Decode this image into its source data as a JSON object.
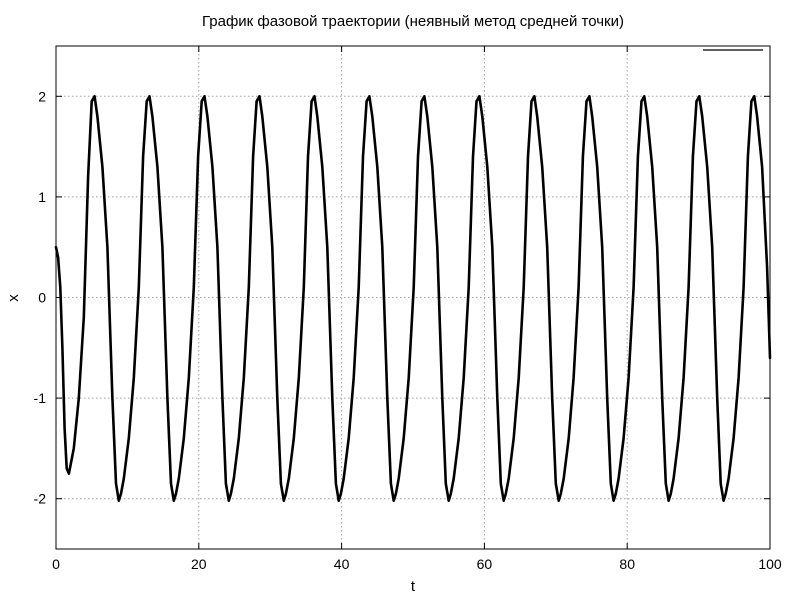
{
  "chart_data": {
    "type": "line",
    "title": "График фазовой траектории (неявный метод средней точки)",
    "xlabel": "t",
    "ylabel": "x",
    "xlim": [
      0,
      100
    ],
    "ylim": [
      -2.5,
      2.5
    ],
    "xticks": [
      0,
      20,
      40,
      60,
      80,
      100
    ],
    "yticks": [
      -2,
      -1,
      0,
      1,
      2
    ],
    "xtick_labels": [
      "0",
      "20",
      "40",
      "60",
      "80",
      "100"
    ],
    "ytick_labels": [
      "-2",
      "-1",
      "0",
      "1",
      "2"
    ],
    "grid": true,
    "legend_placement": "top-right",
    "series_color": "#000000",
    "series": [
      {
        "x": [
          0,
          0.3,
          0.6,
          0.9,
          1.2,
          1.5,
          1.8,
          2.5,
          3.2,
          3.9,
          4.5,
          5.0,
          5.4,
          5.8,
          6.5,
          7.2,
          7.9,
          8.4,
          8.8,
          9.1,
          9.5,
          10.2,
          10.9,
          11.6,
          12.2,
          12.7,
          13.1,
          13.5,
          14.2,
          14.9,
          15.6,
          16.1,
          16.5,
          16.8,
          17.2,
          17.9,
          18.6,
          19.3,
          19.9,
          20.4,
          20.8,
          21.2,
          21.9,
          22.6,
          23.3,
          23.8,
          24.2,
          24.5,
          24.9,
          25.6,
          26.3,
          27.0,
          27.6,
          28.1,
          28.5,
          28.9,
          29.6,
          30.3,
          31.0,
          31.5,
          31.9,
          32.2,
          32.6,
          33.3,
          34.0,
          34.7,
          35.3,
          35.8,
          36.2,
          36.6,
          37.3,
          38.0,
          38.7,
          39.2,
          39.6,
          39.9,
          40.3,
          41.0,
          41.7,
          42.4,
          43.0,
          43.5,
          43.9,
          44.3,
          45.0,
          45.7,
          46.4,
          46.9,
          47.3,
          47.6,
          48.0,
          48.7,
          49.4,
          50.1,
          50.7,
          51.2,
          51.6,
          52.0,
          52.7,
          53.4,
          54.1,
          54.6,
          55.0,
          55.3,
          55.7,
          56.4,
          57.1,
          57.8,
          58.4,
          58.9,
          59.3,
          59.7,
          60.4,
          61.1,
          61.8,
          62.3,
          62.7,
          63.0,
          63.4,
          64.1,
          64.8,
          65.5,
          66.1,
          66.6,
          67.0,
          67.4,
          68.1,
          68.8,
          69.5,
          70.0,
          70.4,
          70.7,
          71.1,
          71.8,
          72.5,
          73.2,
          73.8,
          74.3,
          74.7,
          75.1,
          75.8,
          76.5,
          77.2,
          77.7,
          78.1,
          78.4,
          78.8,
          79.5,
          80.2,
          80.9,
          81.5,
          82.0,
          82.4,
          82.8,
          83.5,
          84.2,
          84.9,
          85.4,
          85.8,
          86.1,
          86.5,
          87.2,
          87.9,
          88.6,
          89.2,
          89.7,
          90.1,
          90.5,
          91.2,
          91.9,
          92.6,
          93.1,
          93.5,
          93.8,
          94.2,
          94.9,
          95.6,
          96.3,
          96.9,
          97.4,
          97.8,
          98.2,
          98.9,
          99.6,
          100
        ],
        "values": [
          0.5,
          0.4,
          0.1,
          -0.5,
          -1.3,
          -1.7,
          -1.75,
          -1.5,
          -1.0,
          -0.2,
          1.2,
          1.95,
          2.0,
          1.8,
          1.3,
          0.5,
          -1.0,
          -1.85,
          -2.02,
          -1.95,
          -1.8,
          -1.4,
          -0.8,
          0.1,
          1.4,
          1.95,
          2.0,
          1.8,
          1.3,
          0.5,
          -1.0,
          -1.85,
          -2.02,
          -1.95,
          -1.8,
          -1.4,
          -0.8,
          0.1,
          1.4,
          1.95,
          2.0,
          1.8,
          1.3,
          0.5,
          -1.0,
          -1.85,
          -2.02,
          -1.95,
          -1.8,
          -1.4,
          -0.8,
          0.1,
          1.4,
          1.95,
          2.0,
          1.8,
          1.3,
          0.5,
          -1.0,
          -1.85,
          -2.02,
          -1.95,
          -1.8,
          -1.4,
          -0.8,
          0.1,
          1.4,
          1.95,
          2.0,
          1.8,
          1.3,
          0.5,
          -1.0,
          -1.85,
          -2.02,
          -1.95,
          -1.8,
          -1.4,
          -0.8,
          0.1,
          1.4,
          1.95,
          2.0,
          1.8,
          1.3,
          0.5,
          -1.0,
          -1.85,
          -2.02,
          -1.95,
          -1.8,
          -1.4,
          -0.8,
          0.1,
          1.4,
          1.95,
          2.0,
          1.8,
          1.3,
          0.5,
          -1.0,
          -1.85,
          -2.02,
          -1.95,
          -1.8,
          -1.4,
          -0.8,
          0.1,
          1.4,
          1.95,
          2.0,
          1.8,
          1.3,
          0.5,
          -1.0,
          -1.85,
          -2.02,
          -1.95,
          -1.8,
          -1.4,
          -0.8,
          0.1,
          1.4,
          1.95,
          2.0,
          1.8,
          1.3,
          0.5,
          -1.0,
          -1.85,
          -2.02,
          -1.95,
          -1.8,
          -1.4,
          -0.8,
          0.1,
          1.4,
          1.95,
          2.0,
          1.8,
          1.3,
          0.5,
          -1.0,
          -1.85,
          -2.02,
          -1.95,
          -1.8,
          -1.4,
          -0.8,
          0.1,
          1.4,
          1.95,
          2.0,
          1.8,
          1.3,
          0.5,
          -1.0,
          -1.85,
          -2.02,
          -1.95,
          -1.8,
          -1.4,
          -0.8,
          0.1,
          1.4,
          1.95,
          2.0,
          1.8,
          1.3,
          0.5,
          -1.0,
          -1.85,
          -2.02,
          -1.95,
          -1.8,
          -1.4,
          -0.8,
          0.1,
          1.4,
          1.95,
          2.0,
          1.8,
          1.3,
          0.3,
          -0.6
        ]
      }
    ]
  }
}
